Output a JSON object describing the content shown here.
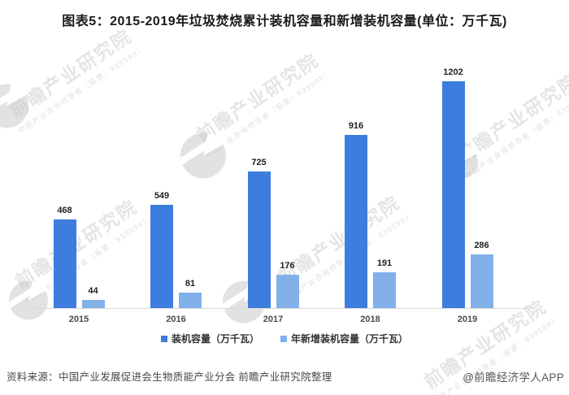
{
  "title": "图表5：2015-2019年垃圾焚烧累计装机容量和新增装机容量(单位：万千瓦)",
  "chart_data": {
    "type": "bar",
    "categories": [
      "2015",
      "2016",
      "2017",
      "2018",
      "2019"
    ],
    "series": [
      {
        "name": "装机容量（万千瓦）",
        "color": "#3D7DDE",
        "values": [
          468,
          549,
          725,
          916,
          1202
        ]
      },
      {
        "name": "年新增装机容量（万千瓦）",
        "color": "#82B1EA",
        "values": [
          44,
          81,
          176,
          191,
          286
        ]
      }
    ],
    "title": "图表5：2015-2019年垃圾焚烧累计装机容量和新增装机容量(单位：万千瓦)",
    "xlabel": "",
    "ylabel": "",
    "ylim": [
      0,
      1300
    ],
    "grid": false,
    "y_axis": "hidden",
    "value_labels": true,
    "legend_position": "bottom"
  },
  "watermark": {
    "text": "前瞻产业研究院",
    "subtext": "中国产业咨询领导者（股票：839599）"
  },
  "footer": {
    "source": "资料来源：中国产业发展促进会生物质能产业分会 前瞻产业研究院整理",
    "credit": "@前瞻经济学人APP"
  },
  "colors": {
    "bar_primary": "#3D7DDE",
    "bar_secondary": "#82B1EA",
    "axis_line": "#D9D9D9",
    "title_text": "#1A1A1A",
    "value_label_text": "#222222",
    "year_label_text": "#4A4A4A",
    "footer_text": "#474747",
    "watermark": "#C6C6C6",
    "background": "#FFFFFF"
  }
}
